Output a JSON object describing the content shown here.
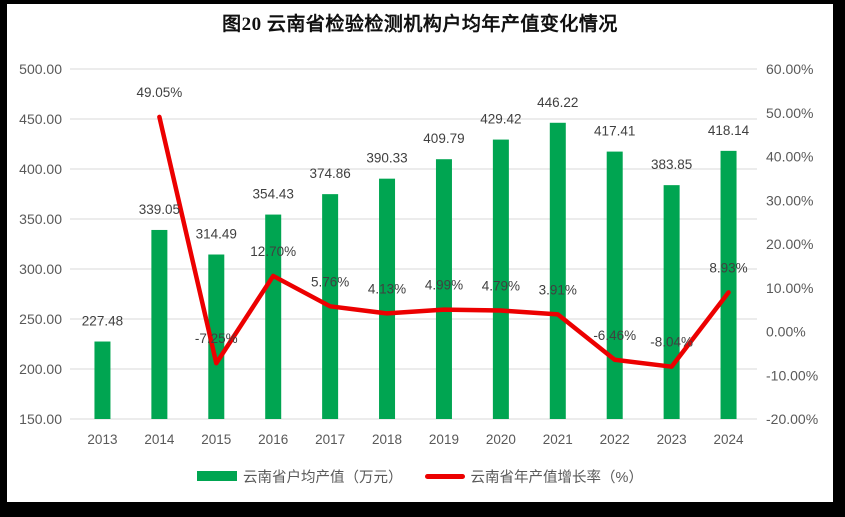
{
  "chart_data": {
    "type": "combo",
    "title": "图20  云南省检验检测机构户均年产值变化情况",
    "categories": [
      "2013",
      "2014",
      "2015",
      "2016",
      "2017",
      "2018",
      "2019",
      "2020",
      "2021",
      "2022",
      "2023",
      "2024"
    ],
    "series": [
      {
        "name": "云南省户均产值（万元）",
        "type": "bar",
        "axis": "left",
        "color": "#00a551",
        "values": [
          227.48,
          339.05,
          314.49,
          354.43,
          374.86,
          390.33,
          409.79,
          429.42,
          446.22,
          417.41,
          383.85,
          418.14
        ],
        "labels": [
          "227.48",
          "339.05",
          "314.49",
          "354.43",
          "374.86",
          "390.33",
          "409.79",
          "429.42",
          "446.22",
          "417.41",
          "383.85",
          "418.14"
        ]
      },
      {
        "name": "云南省年产值增长率（%）",
        "type": "line",
        "axis": "right",
        "color": "#ec0000",
        "values": [
          null,
          49.05,
          -7.25,
          12.7,
          5.76,
          4.13,
          4.99,
          4.79,
          3.91,
          -6.46,
          -8.04,
          8.93
        ],
        "labels": [
          null,
          "49.05%",
          "-7.25%",
          "12.70%",
          "5.76%",
          "4.13%",
          "4.99%",
          "4.79%",
          "3.91%",
          "-6.46%",
          "-8.04%",
          "8.93%"
        ]
      }
    ],
    "left_axis": {
      "min": 150,
      "max": 500,
      "step": 50,
      "tick_labels": [
        "150.00",
        "200.00",
        "250.00",
        "300.00",
        "350.00",
        "400.00",
        "450.00",
        "500.00"
      ]
    },
    "right_axis": {
      "min": -20,
      "max": 60,
      "step": 10,
      "tick_labels": [
        "-20.00%",
        "-10.00%",
        "0.00%",
        "10.00%",
        "20.00%",
        "30.00%",
        "40.00%",
        "50.00%",
        "60.00%"
      ]
    },
    "grid": true,
    "legend_position": "bottom",
    "colors": {
      "gridline": "#d9d9d9",
      "axis_text": "#595959",
      "data_label": "#404040",
      "background": "#ffffff",
      "frame": "#000000"
    }
  }
}
